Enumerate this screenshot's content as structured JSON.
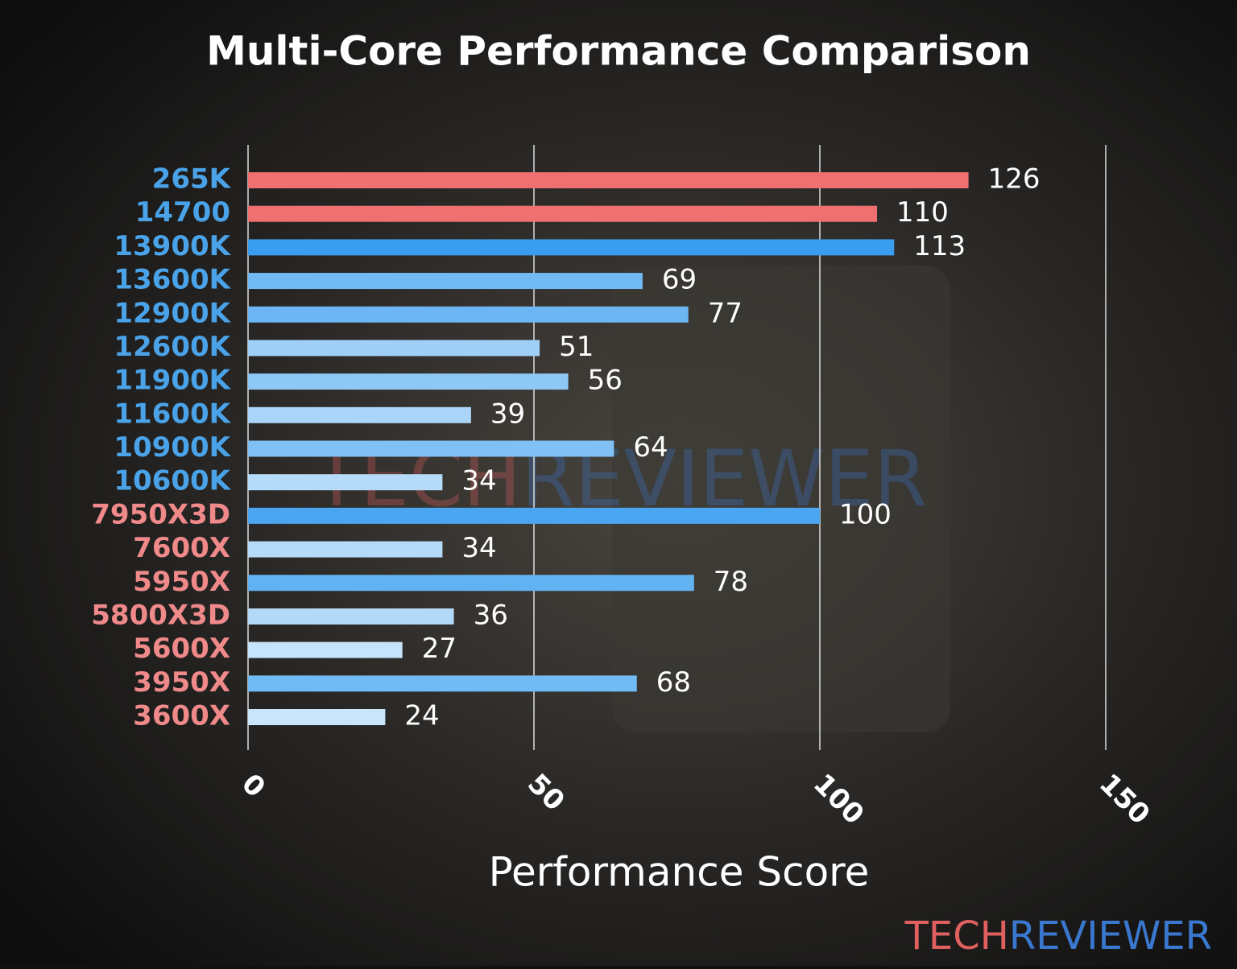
{
  "chart_data": {
    "type": "barh",
    "title": "Multi-Core Performance Comparison",
    "xlabel": "Performance Score",
    "categories": [
      "265K",
      "14700",
      "13900K",
      "13600K",
      "12900K",
      "12600K",
      "11900K",
      "11600K",
      "10900K",
      "10600K",
      "7950X3D",
      "7600X",
      "5950X",
      "5800X3D",
      "5600X",
      "3950X",
      "3600X"
    ],
    "category_colors": [
      "#4aa3e8",
      "#4aa3e8",
      "#4aa3e8",
      "#4aa3e8",
      "#4aa3e8",
      "#4aa3e8",
      "#4aa3e8",
      "#4aa3e8",
      "#4aa3e8",
      "#4aa3e8",
      "#f08a8a",
      "#f08a8a",
      "#f08a8a",
      "#f08a8a",
      "#f08a8a",
      "#f08a8a",
      "#f08a8a"
    ],
    "values": [
      126,
      110,
      113,
      69,
      77,
      51,
      56,
      39,
      64,
      34,
      100,
      34,
      78,
      36,
      27,
      68,
      24
    ],
    "colors": [
      "#f07070",
      "#f07070",
      "#3a9ef0",
      "#72baf3",
      "#6cb6f3",
      "#a0d0f7",
      "#8ec8f5",
      "#aad5f8",
      "#80c0f4",
      "#b5dbf8",
      "#4aa6f0",
      "#b5dbf8",
      "#62b2f2",
      "#b2d9f8",
      "#c5e3fa",
      "#72baf3",
      "#c8e5fa"
    ],
    "xlim": [
      0,
      150
    ],
    "xticks": [
      0,
      50,
      100,
      150
    ],
    "grid": true,
    "logo": [
      "TECH",
      "REVIEWER"
    ],
    "logo_colors": [
      "#e06060",
      "#3a78d0"
    ]
  }
}
